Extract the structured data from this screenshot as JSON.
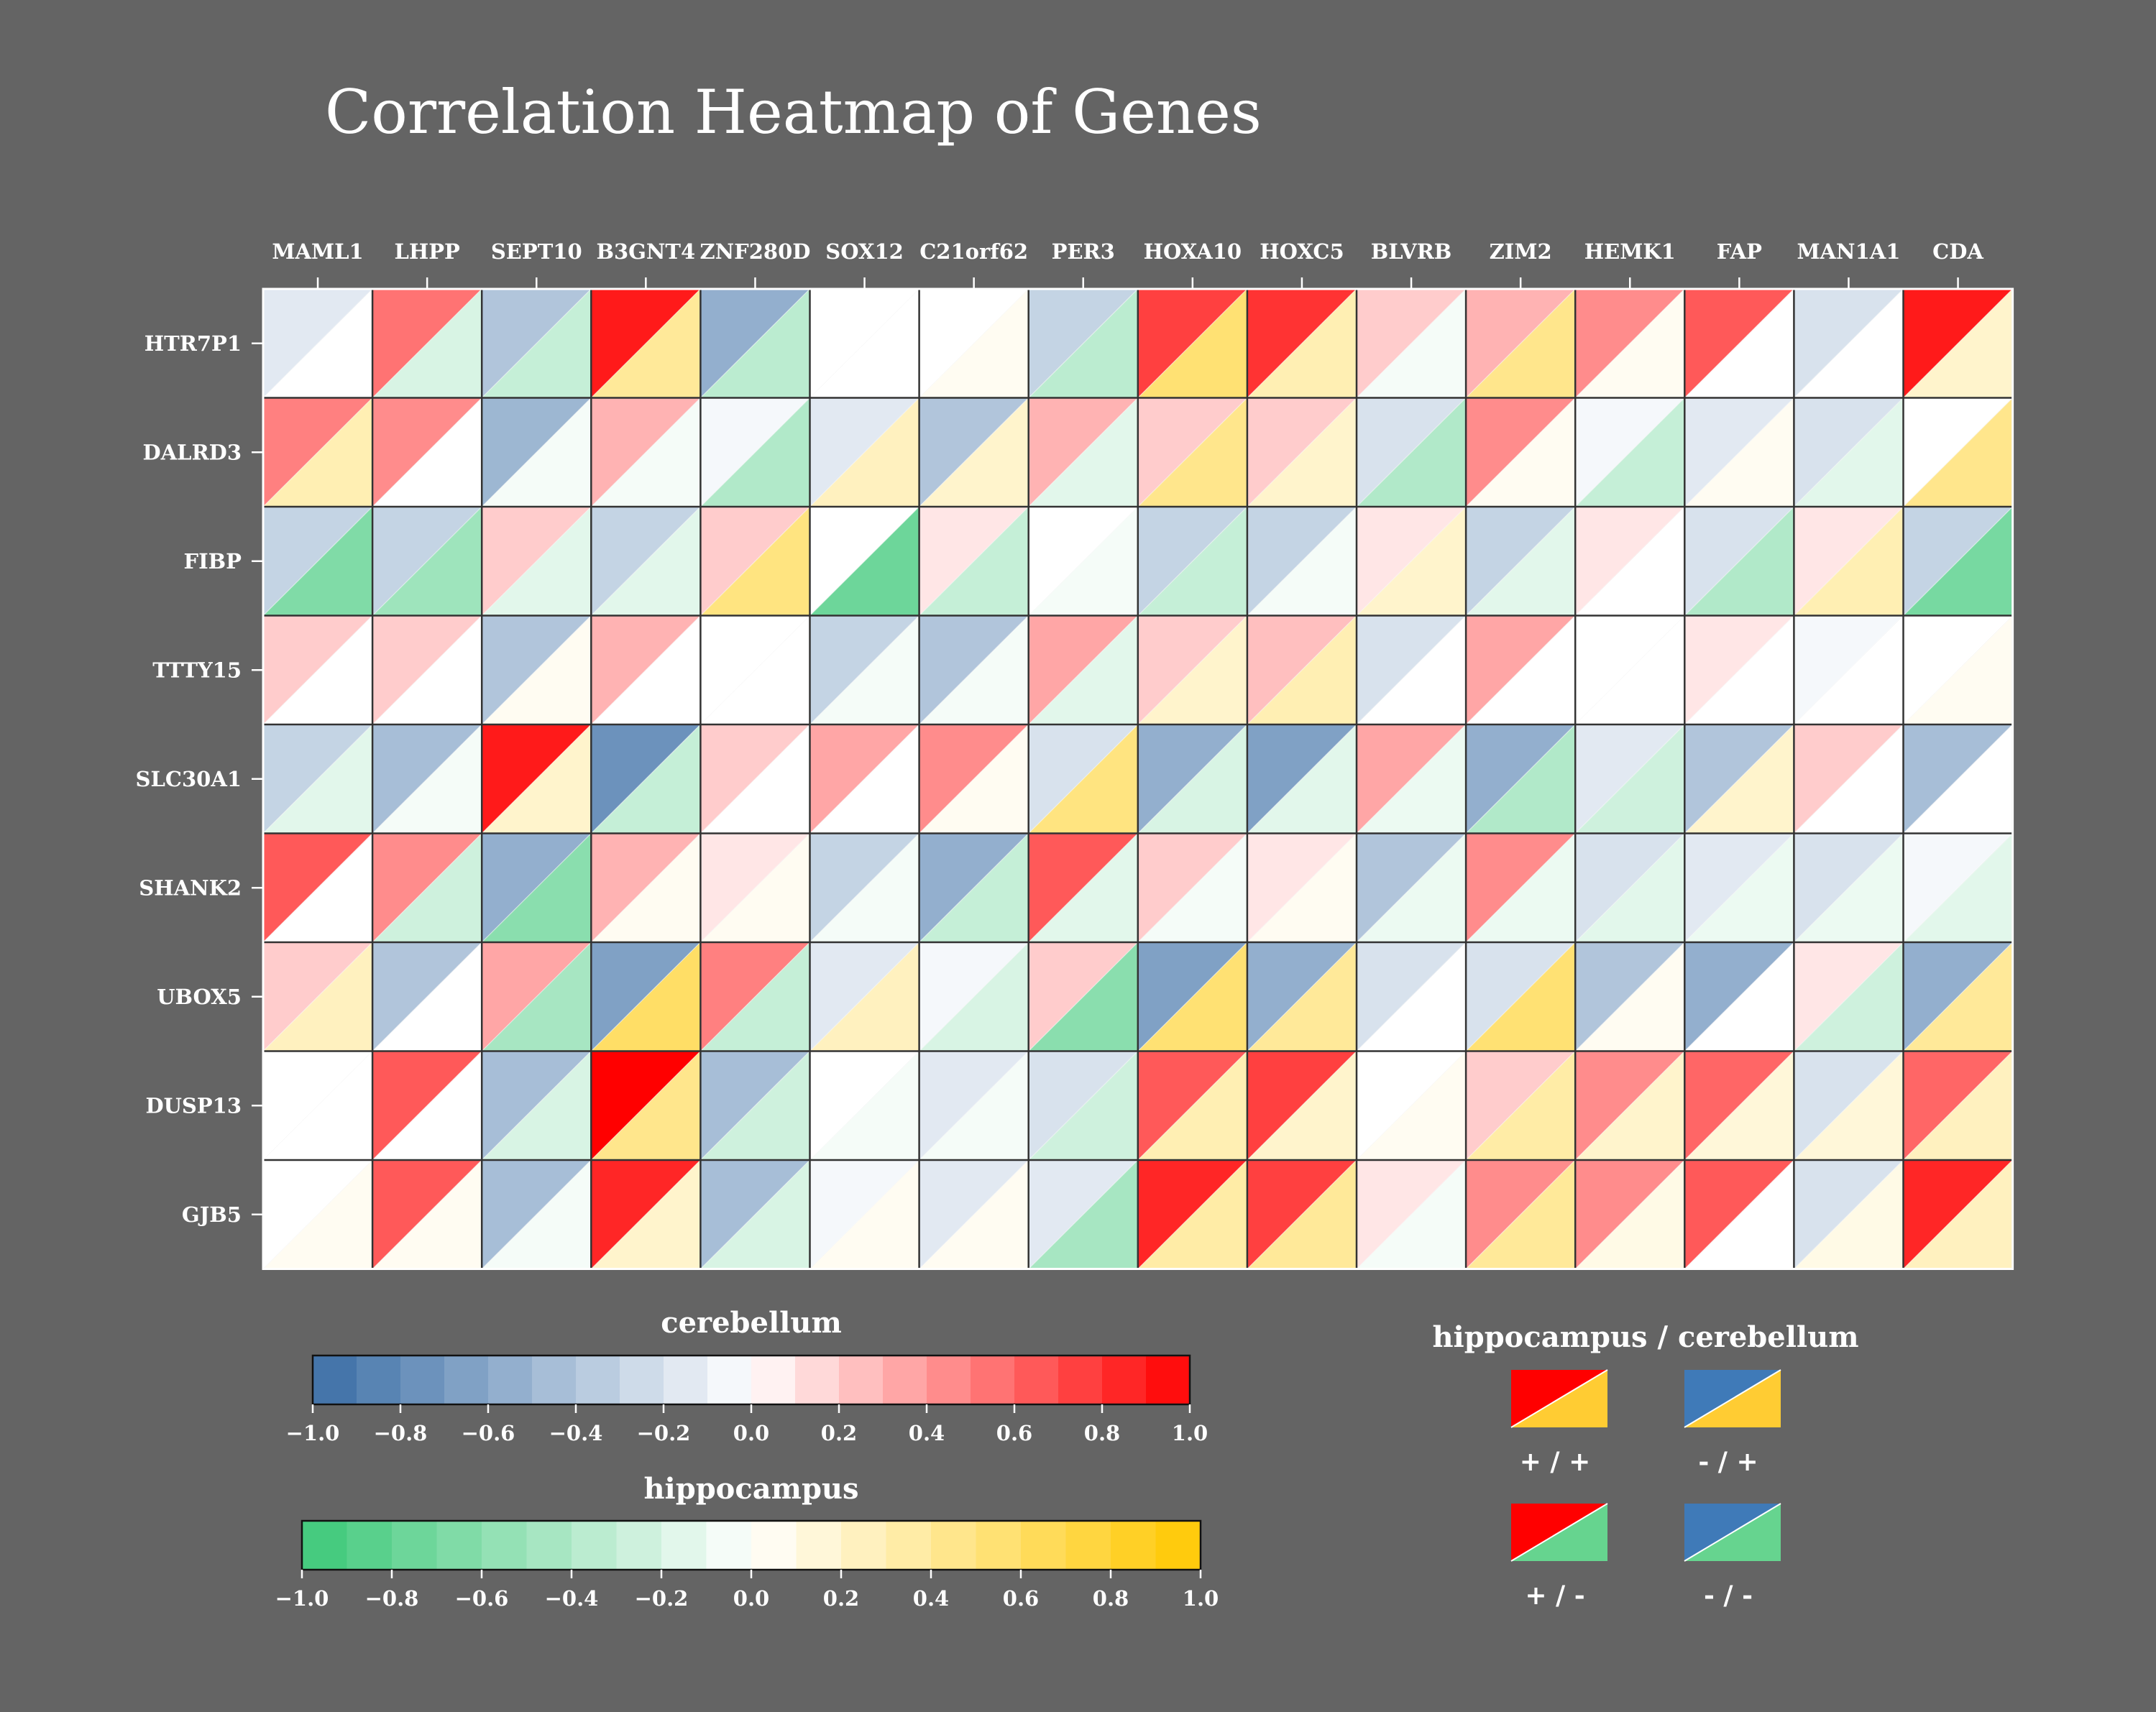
{
  "chart_data": {
    "type": "heatmap",
    "title": "Correlation Heatmap of Genes",
    "columns": [
      "MAML1",
      "LHPP",
      "SEPT10",
      "B3GNT4",
      "ZNF280D",
      "SOX12",
      "C21orf62",
      "PER3",
      "HOXA10",
      "HOXC5",
      "BLVRB",
      "ZIM2",
      "HEMK1",
      "FAP",
      "MAN1A1",
      "CDA"
    ],
    "rows": [
      "HTR7P1",
      "DALRD3",
      "FIBP",
      "TTTY15",
      "SLC30A1",
      "SHANK2",
      "UBOX5",
      "DUSP13",
      "GJB5"
    ],
    "cerebellum": [
      [
        -0.15,
        0.55,
        -0.4,
        0.9,
        -0.55,
        0.0,
        0.0,
        -0.3,
        0.75,
        0.8,
        0.2,
        0.3,
        0.45,
        0.65,
        -0.2,
        0.9
      ],
      [
        0.5,
        0.45,
        -0.5,
        0.3,
        -0.05,
        -0.15,
        -0.4,
        0.3,
        0.2,
        0.2,
        -0.2,
        0.45,
        -0.05,
        -0.15,
        -0.2,
        0.0
      ],
      [
        -0.3,
        -0.3,
        0.2,
        -0.3,
        0.2,
        0.0,
        0.1,
        0.0,
        -0.3,
        -0.3,
        0.1,
        -0.3,
        0.1,
        -0.2,
        0.1,
        -0.3
      ],
      [
        0.2,
        0.2,
        -0.4,
        0.3,
        0.0,
        -0.3,
        -0.4,
        0.35,
        0.2,
        0.25,
        -0.2,
        0.35,
        0.0,
        0.1,
        -0.05,
        0.0
      ],
      [
        -0.3,
        -0.45,
        0.9,
        -0.75,
        0.2,
        0.35,
        0.45,
        -0.2,
        -0.55,
        -0.65,
        0.35,
        -0.55,
        -0.15,
        -0.4,
        0.2,
        -0.45
      ],
      [
        0.65,
        0.45,
        -0.55,
        0.3,
        0.1,
        -0.3,
        -0.55,
        0.65,
        0.2,
        0.1,
        -0.4,
        0.45,
        -0.2,
        -0.15,
        -0.2,
        -0.05
      ],
      [
        0.2,
        -0.4,
        0.35,
        -0.65,
        0.5,
        -0.15,
        -0.05,
        0.2,
        -0.65,
        -0.55,
        -0.2,
        -0.2,
        -0.4,
        -0.55,
        0.1,
        -0.55
      ],
      [
        0.0,
        0.65,
        -0.45,
        1.0,
        -0.45,
        0.0,
        -0.15,
        -0.2,
        0.65,
        0.75,
        0.0,
        0.2,
        0.45,
        0.6,
        -0.2,
        0.6
      ],
      [
        0.0,
        0.65,
        -0.45,
        0.85,
        -0.45,
        -0.05,
        -0.15,
        -0.15,
        0.85,
        0.75,
        0.1,
        0.45,
        0.45,
        0.65,
        -0.2,
        0.85
      ]
    ],
    "hippocampus": [
      [
        0.0,
        -0.2,
        -0.3,
        0.4,
        -0.35,
        0.0,
        0.05,
        -0.35,
        0.55,
        0.3,
        -0.05,
        0.45,
        0.05,
        0.0,
        0.0,
        0.2
      ],
      [
        0.3,
        0.0,
        -0.05,
        -0.05,
        -0.4,
        0.25,
        0.2,
        -0.15,
        0.45,
        0.2,
        -0.4,
        0.05,
        -0.3,
        0.05,
        -0.15,
        0.45
      ],
      [
        -0.65,
        -0.5,
        -0.15,
        -0.15,
        0.5,
        -0.75,
        -0.3,
        -0.05,
        -0.3,
        -0.05,
        0.2,
        -0.15,
        0.0,
        -0.4,
        0.3,
        -0.7
      ],
      [
        0.0,
        0.0,
        0.05,
        0.0,
        0.0,
        -0.05,
        -0.05,
        -0.15,
        0.2,
        0.3,
        0.0,
        0.0,
        0.0,
        0.0,
        0.0,
        0.05
      ],
      [
        -0.15,
        -0.05,
        0.2,
        -0.3,
        0.0,
        0.0,
        0.05,
        0.5,
        -0.2,
        -0.15,
        -0.1,
        -0.4,
        -0.25,
        0.2,
        0.0,
        0.0
      ],
      [
        0.0,
        -0.25,
        -0.6,
        0.05,
        0.05,
        -0.05,
        -0.3,
        -0.15,
        -0.05,
        0.05,
        -0.1,
        -0.1,
        -0.15,
        -0.1,
        -0.1,
        -0.15
      ],
      [
        0.25,
        0.0,
        -0.45,
        0.6,
        -0.3,
        0.25,
        -0.2,
        -0.6,
        0.55,
        0.4,
        0.0,
        0.55,
        0.05,
        0.0,
        -0.25,
        0.4
      ],
      [
        0.0,
        0.0,
        -0.2,
        0.45,
        -0.25,
        -0.05,
        -0.05,
        -0.25,
        0.3,
        0.2,
        0.05,
        0.35,
        0.2,
        0.15,
        0.15,
        0.25
      ],
      [
        0.05,
        0.05,
        -0.05,
        0.2,
        -0.2,
        0.05,
        0.05,
        -0.45,
        0.35,
        0.4,
        -0.05,
        0.4,
        0.1,
        0.0,
        0.1,
        0.25
      ]
    ],
    "legend_cerebellum": {
      "title": "cerebellum",
      "ticks": [
        "−1.0",
        "−0.8",
        "−0.6",
        "−0.4",
        "−0.2",
        "0.0",
        "0.2",
        "0.4",
        "0.6",
        "0.8",
        "1.0"
      ],
      "range": [
        -1,
        1
      ],
      "low_color": "#3b6ea5",
      "mid_color": "#ffffff",
      "high_color": "#ff0000"
    },
    "legend_hippocampus": {
      "title": "hippocampus",
      "ticks": [
        "−1.0",
        "−0.8",
        "−0.6",
        "−0.4",
        "−0.2",
        "0.0",
        "0.2",
        "0.4",
        "0.6",
        "0.8",
        "1.0"
      ],
      "range": [
        -1,
        1
      ],
      "low_color": "#3cc878",
      "mid_color": "#ffffff",
      "high_color": "#ffc800"
    },
    "legend_key": {
      "title": "hippocampus / cerebellum",
      "items": [
        {
          "label": "+ / +",
          "upper": "#ff0000",
          "lower": "#ffcc33"
        },
        {
          "label": "- / +",
          "upper": "#3f7ab8",
          "lower": "#ffcc33"
        },
        {
          "label": "+ / -",
          "upper": "#ff0000",
          "lower": "#66d48f"
        },
        {
          "label": "- / -",
          "upper": "#3f7ab8",
          "lower": "#66d48f"
        }
      ]
    }
  }
}
